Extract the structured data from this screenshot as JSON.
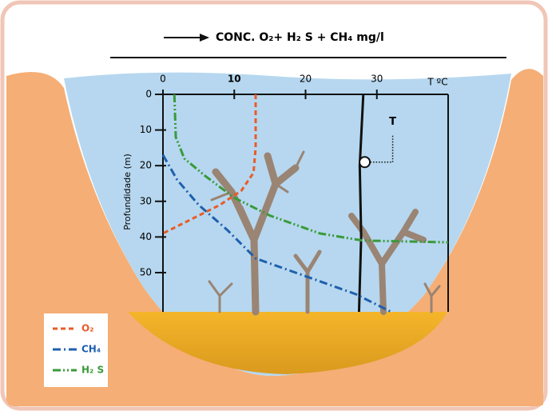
{
  "chart_data": {
    "type": "line",
    "title": "CONC. O₂+ H₂ S + CH₄  mg/l",
    "ylabel": "Profundidade (m)",
    "x_unit_label": "T ºC",
    "xlim": [
      0,
      40
    ],
    "xticks": [
      0,
      10,
      20,
      30
    ],
    "ylim": [
      0,
      61
    ],
    "yticks": [
      0,
      10,
      20,
      30,
      40,
      50
    ],
    "y_inverted": true,
    "legend": "lower left",
    "series": [
      {
        "name": "O₂",
        "color": "#ea5b27",
        "style": "dashed",
        "x": [
          13,
          13,
          12.7,
          11,
          8,
          4,
          0
        ],
        "y": [
          0,
          15,
          22,
          27,
          31,
          35,
          39
        ]
      },
      {
        "name": "CH₄",
        "color": "#1f5fae",
        "style": "dashdot",
        "x": [
          0,
          2,
          5,
          9,
          13,
          20,
          27,
          32
        ],
        "y": [
          17,
          24,
          31,
          38,
          46,
          51,
          56,
          61
        ]
      },
      {
        "name": "H₂ S",
        "color": "#3a9a3a",
        "style": "dashdotdot",
        "x": [
          1.6,
          1.8,
          3,
          6,
          10,
          15,
          22,
          28,
          40
        ],
        "y": [
          0,
          12,
          18,
          23,
          29,
          34,
          39,
          41,
          41.5
        ]
      }
    ],
    "temperature": {
      "label": "T",
      "color": "#111111",
      "x": [
        28.1,
        27.6,
        27.8,
        27.5
      ],
      "y": [
        0,
        20,
        40,
        61
      ],
      "marker": {
        "x": 28.3,
        "y": 19
      }
    }
  }
}
